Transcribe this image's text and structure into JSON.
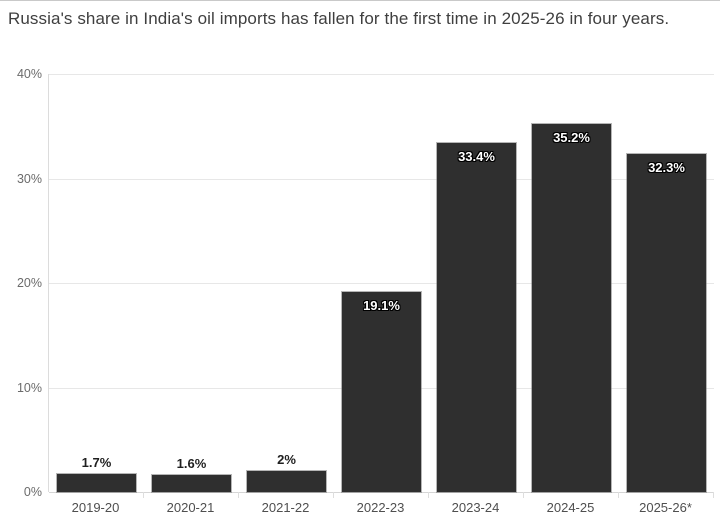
{
  "title": "Russia's share in India's oil imports has fallen for the first time in 2025-26 in four years.",
  "chart_data": {
    "type": "bar",
    "title": "Russia's share in India's oil imports has fallen for the first time in 2025-26 in four years.",
    "categories": [
      "2019-20",
      "2020-21",
      "2021-22",
      "2022-23",
      "2023-24",
      "2024-25",
      "2025-26*"
    ],
    "values": [
      1.7,
      1.6,
      2,
      19.1,
      33.4,
      35.2,
      32.3
    ],
    "value_labels": [
      "1.7%",
      "1.6%",
      "2%",
      "19.1%",
      "33.4%",
      "35.2%",
      "32.3%"
    ],
    "xlabel": "",
    "ylabel": "",
    "ylim": [
      0,
      40
    ],
    "yticks": [
      0,
      10,
      20,
      30,
      40
    ],
    "ytick_labels": [
      "0%",
      "10%",
      "20%",
      "30%",
      "40%"
    ],
    "grid": true,
    "legend": false,
    "bar_color": "#2f2f2f",
    "inside_label_min_value": 10
  },
  "colors": {
    "background": "#ffffff",
    "bar": "#2f2f2f",
    "title_text": "#3f3f3f",
    "ytick_text": "#6b6b6b",
    "xtick_text": "#4f4f4f",
    "gridline": "#e7e7e7",
    "baseline": "#d6d6d6",
    "inside_label": "#ffffff",
    "outside_label": "#1f1f1f",
    "top_rule": "#c9c9c9"
  }
}
